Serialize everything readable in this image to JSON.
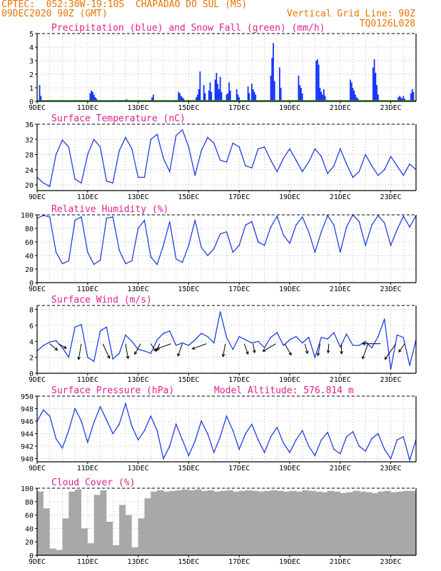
{
  "header": {
    "line1": "CPTEC:  052:30W-19:10S  CHAPADAO DO SUL (MS)",
    "line2": "09DEC2020 90Z (GMT)",
    "grid_note": "Vertical Grid Line: 90Z",
    "code": "TQ0126L028"
  },
  "colors": {
    "header": "#e87400",
    "title": "#e0208a",
    "precip": "#1030ff",
    "snow": "#20a020",
    "line": "#2040e0",
    "cloud": "#a8a8a8",
    "arrows": "#000000"
  },
  "chart_data": [
    {
      "id": "precip",
      "type": "bar",
      "title": "Precipitation (blue) and Snow Fall (green) (mm/h)",
      "ylim": [
        0,
        5
      ],
      "yticks": [
        0,
        1,
        2,
        3,
        4,
        5
      ],
      "xticks": [
        "9DEC",
        "11DEC",
        "13DEC",
        "15DEC",
        "17DEC",
        "19DEC",
        "21DEC",
        "23DEC"
      ],
      "series": [
        {
          "name": "precipitation",
          "x": [
            0.1,
            0.15,
            2.1,
            2.15,
            2.2,
            2.25,
            2.3,
            2.35,
            3.5,
            3.55,
            4.55,
            4.6,
            5.6,
            5.65,
            5.7,
            5.75,
            5.8,
            6.3,
            6.35,
            6.4,
            6.45,
            6.6,
            6.65,
            6.8,
            6.85,
            6.9,
            7.05,
            7.1,
            7.15,
            7.2,
            7.25,
            7.3,
            7.5,
            7.55,
            7.6,
            7.65,
            7.9,
            7.95,
            8.0,
            8.35,
            8.4,
            8.5,
            8.55,
            8.6,
            8.65,
            9.25,
            9.3,
            9.35,
            9.4,
            9.6,
            9.65,
            10.35,
            10.4,
            10.45,
            10.5,
            11.05,
            11.1,
            11.15,
            11.2,
            11.25,
            11.3,
            11.35,
            11.4,
            12.4,
            12.45,
            12.5,
            12.55,
            12.6,
            12.65,
            12.7,
            13.3,
            13.35,
            13.4,
            13.45,
            13.5,
            14.3,
            14.35,
            14.4,
            14.45,
            14.5,
            14.55,
            14.8,
            14.85,
            14.9
          ],
          "values": [
            1.2,
            0.4,
            0.6,
            0.8,
            0.7,
            0.5,
            0.3,
            0.2,
            0.1,
            0.15,
            0.3,
            0.5,
            0.7,
            0.6,
            0.4,
            0.3,
            0.2,
            0.3,
            0.5,
            0.9,
            2.2,
            1.2,
            0.6,
            0.8,
            1.4,
            0.7,
            1.6,
            2.1,
            1.3,
            0.9,
            1.8,
            0.7,
            0.5,
            0.6,
            1.4,
            0.8,
            0.9,
            0.5,
            0.3,
            1.1,
            0.6,
            1.3,
            0.9,
            0.7,
            0.5,
            1.9,
            3.2,
            4.3,
            1.5,
            2.5,
            1.0,
            1.9,
            1.2,
            1.0,
            0.6,
            3.0,
            3.1,
            2.7,
            1.0,
            0.7,
            0.5,
            0.9,
            0.4,
            1.6,
            1.4,
            1.0,
            0.8,
            0.5,
            0.3,
            0.2,
            2.5,
            3.1,
            2.1,
            1.2,
            0.5,
            0.3,
            0.4,
            0.3,
            0.2,
            0.4,
            0.2,
            0.6,
            0.9,
            0.7
          ]
        }
      ]
    },
    {
      "id": "temp",
      "type": "line",
      "title": "Surface Temperature (nC)",
      "ylim": [
        18.5,
        36
      ],
      "yticks": [
        20,
        24,
        28,
        32,
        36
      ],
      "xticks": [
        "9DEC",
        "11DEC",
        "13DEC",
        "15DEC",
        "17DEC",
        "19DEC",
        "21DEC",
        "23DEC"
      ],
      "series": [
        {
          "name": "temperature",
          "x": [
            0,
            0.25,
            0.5,
            0.75,
            1,
            1.25,
            1.5,
            1.75,
            2,
            2.25,
            2.5,
            2.75,
            3,
            3.25,
            3.5,
            3.75,
            4,
            4.25,
            4.5,
            4.75,
            5,
            5.25,
            5.5,
            5.75,
            6,
            6.25,
            6.5,
            6.75,
            7,
            7.25,
            7.5,
            7.75,
            8,
            8.25,
            8.5,
            8.75,
            9,
            9.25,
            9.5,
            9.75,
            10,
            10.25,
            10.5,
            10.75,
            11,
            11.25,
            11.5,
            11.75,
            12,
            12.25,
            12.5,
            12.75,
            13,
            13.25,
            13.5,
            13.75,
            14,
            14.25,
            14.5,
            14.75,
            15
          ],
          "values": [
            22,
            20.5,
            19.6,
            28,
            31.8,
            30,
            21.5,
            20.5,
            28,
            32,
            30,
            21,
            20.5,
            29,
            32.5,
            29.5,
            22,
            22,
            32,
            33.3,
            27,
            23.5,
            33,
            34.5,
            30,
            22.5,
            29,
            32.5,
            31,
            26.5,
            26,
            31,
            30,
            25,
            24.5,
            29.5,
            30,
            26.5,
            23.5,
            27,
            29.5,
            26.5,
            23.5,
            26,
            29.5,
            27.5,
            23,
            25,
            29.5,
            25.5,
            22,
            23.5,
            28,
            25,
            22.5,
            24,
            27.5,
            25,
            22.5,
            25.5,
            24
          ]
        }
      ]
    },
    {
      "id": "rh",
      "type": "line",
      "title": "Relative Humidity (%)",
      "ylim": [
        0,
        100
      ],
      "yticks": [
        0,
        20,
        40,
        60,
        80,
        100
      ],
      "xticks": [
        "9DEC",
        "11DEC",
        "13DEC",
        "15DEC",
        "17DEC",
        "19DEC",
        "21DEC",
        "23DEC"
      ],
      "series": [
        {
          "name": "relative humidity",
          "x": [
            0,
            0.25,
            0.5,
            0.75,
            1,
            1.25,
            1.5,
            1.75,
            2,
            2.25,
            2.5,
            2.75,
            3,
            3.25,
            3.5,
            3.75,
            4,
            4.25,
            4.5,
            4.75,
            5,
            5.25,
            5.5,
            5.75,
            6,
            6.25,
            6.5,
            6.75,
            7,
            7.25,
            7.5,
            7.75,
            8,
            8.25,
            8.5,
            8.75,
            9,
            9.25,
            9.5,
            9.75,
            10,
            10.25,
            10.5,
            10.75,
            11,
            11.25,
            11.5,
            11.75,
            12,
            12.25,
            12.5,
            12.75,
            13,
            13.25,
            13.5,
            13.75,
            14,
            14.25,
            14.5,
            14.75,
            15
          ],
          "values": [
            95,
            99,
            97,
            45,
            28,
            32,
            92,
            97,
            45,
            27,
            33,
            95,
            97,
            48,
            28,
            32,
            80,
            92,
            38,
            27,
            55,
            90,
            35,
            30,
            55,
            92,
            52,
            40,
            50,
            72,
            75,
            45,
            55,
            85,
            90,
            60,
            55,
            82,
            98,
            70,
            58,
            85,
            97,
            75,
            45,
            75,
            99,
            85,
            45,
            82,
            100,
            90,
            55,
            85,
            99,
            88,
            55,
            78,
            98,
            82,
            99
          ]
        }
      ]
    },
    {
      "id": "wind",
      "type": "line",
      "title": "Surface Wind (m/s)",
      "ylim": [
        0,
        8.5
      ],
      "yticks": [
        0,
        2,
        4,
        6,
        8
      ],
      "xticks": [
        "9DEC",
        "11DEC",
        "13DEC",
        "15DEC",
        "17DEC",
        "19DEC",
        "21DEC",
        "23DEC"
      ],
      "series": [
        {
          "name": "wind speed",
          "x": [
            0,
            0.25,
            0.5,
            0.75,
            1,
            1.25,
            1.5,
            1.75,
            2,
            2.25,
            2.5,
            2.75,
            3,
            3.25,
            3.5,
            3.75,
            4,
            4.25,
            4.5,
            4.75,
            5,
            5.25,
            5.5,
            5.75,
            6,
            6.25,
            6.5,
            6.75,
            7,
            7.25,
            7.5,
            7.75,
            8,
            8.25,
            8.5,
            8.75,
            9,
            9.25,
            9.5,
            9.75,
            10,
            10.25,
            10.5,
            10.75,
            11,
            11.25,
            11.5,
            11.75,
            12,
            12.25,
            12.5,
            12.75,
            13,
            13.25,
            13.5,
            13.75,
            14,
            14.25,
            14.5,
            14.75,
            15
          ],
          "values": [
            2.8,
            3.5,
            3.9,
            4.1,
            3.2,
            2.0,
            5.8,
            6.1,
            2.0,
            1.5,
            5.3,
            5.8,
            1.8,
            2.5,
            4.8,
            4.0,
            3.0,
            2.8,
            2.5,
            4.2,
            5.0,
            5.3,
            3.5,
            3.8,
            3.5,
            4.2,
            5.0,
            4.6,
            3.8,
            7.7,
            4.5,
            3.0,
            4.6,
            4.2,
            3.8,
            4.0,
            3.2,
            4.5,
            5.1,
            3.5,
            4.2,
            4.6,
            3.8,
            4.5,
            2.0,
            4.5,
            4.3,
            5.1,
            3.3,
            4.9,
            3.5,
            3.5,
            4.0,
            3.2,
            4.6,
            6.8,
            0.5,
            4.8,
            4.5,
            1.0,
            4.2
          ]
        }
      ],
      "arrows": {
        "x": [
          0.5,
          0.85,
          1.75,
          2.6,
          3.5,
          4.1,
          4.5,
          4.85,
          5.3,
          5.75,
          6.7,
          7.45,
          8.2,
          8.55,
          9.45,
          9.8,
          10.6,
          11.2,
          11.55,
          12.05,
          13.1,
          13.6,
          14.2,
          14.55
        ],
        "length": [
          1.0,
          0.9,
          1.6,
          1.6,
          1.5,
          1.2,
          0.9,
          0.8,
          1.5,
          1.3,
          1.5,
          1.3,
          1.1,
          0.9,
          1.5,
          1.3,
          1.0,
          1.2,
          0.9,
          1.0,
          1.6,
          1.8,
          1.9,
          1.0
        ],
        "angle_deg": [
          -40,
          -30,
          -100,
          -65,
          -80,
          -120,
          -55,
          -115,
          -160,
          -110,
          -160,
          -100,
          -70,
          -80,
          -150,
          -60,
          -75,
          -100,
          -95,
          -90,
          -110,
          -180,
          -125,
          -125
        ]
      }
    },
    {
      "id": "pressure",
      "type": "line",
      "title": "Surface Pressure (hPa)",
      "subtitle": "Model Altitude: 576.814 m",
      "ylim": [
        939.5,
        950
      ],
      "yticks": [
        940,
        942,
        944,
        946,
        948,
        950
      ],
      "xticks": [
        "9DEC",
        "11DEC",
        "13DEC",
        "15DEC",
        "17DEC",
        "19DEC",
        "21DEC",
        "23DEC"
      ],
      "series": [
        {
          "name": "surface pressure",
          "x": [
            0,
            0.25,
            0.5,
            0.75,
            1,
            1.25,
            1.5,
            1.75,
            2,
            2.25,
            2.5,
            2.75,
            3,
            3.25,
            3.5,
            3.75,
            4,
            4.25,
            4.5,
            4.75,
            5,
            5.25,
            5.5,
            5.75,
            6,
            6.25,
            6.5,
            6.75,
            7,
            7.25,
            7.5,
            7.75,
            8,
            8.25,
            8.5,
            8.75,
            9,
            9.25,
            9.5,
            9.75,
            10,
            10.25,
            10.5,
            10.75,
            11,
            11.25,
            11.5,
            11.75,
            12,
            12.25,
            12.5,
            12.75,
            13,
            13.25,
            13.5,
            13.75,
            14,
            14.25,
            14.5,
            14.75,
            15
          ],
          "values": [
            946.0,
            947.8,
            946.8,
            943.2,
            941.7,
            944.5,
            948.0,
            946.0,
            942.6,
            945.8,
            948.3,
            946.2,
            944.0,
            945.5,
            948.8,
            945.2,
            943.0,
            944.5,
            946.8,
            944.5,
            940.0,
            942.0,
            945.5,
            943.0,
            940.5,
            942.8,
            946.0,
            944.0,
            941.0,
            943.5,
            946.8,
            944.5,
            941.5,
            944.0,
            945.5,
            943.0,
            941.0,
            943.5,
            945.0,
            942.5,
            941.0,
            943.0,
            944.5,
            942.0,
            940.5,
            943.0,
            944.2,
            941.5,
            940.8,
            943.5,
            944.3,
            942.0,
            941.2,
            943.2,
            944.0,
            941.5,
            940.0,
            943.0,
            943.5,
            939.8,
            943.0
          ]
        }
      ]
    },
    {
      "id": "cloud",
      "type": "bar",
      "title": "Cloud Cover (%)",
      "ylim": [
        0,
        100
      ],
      "yticks": [
        0,
        20,
        40,
        60,
        80,
        100
      ],
      "xticks": [
        "9DEC",
        "11DEC",
        "13DEC",
        "15DEC",
        "17DEC",
        "19DEC",
        "21DEC",
        "23DEC"
      ],
      "series": [
        {
          "name": "cloud cover",
          "x": [
            0.25,
            0.5,
            0.75,
            1,
            1.25,
            1.5,
            1.75,
            2,
            2.25,
            2.5,
            2.75,
            3,
            3.25,
            3.5,
            3.75,
            4,
            4.25,
            4.5,
            4.75,
            5,
            5.25,
            5.5,
            5.75,
            6,
            6.25,
            6.5,
            6.75,
            7,
            7.25,
            7.5,
            7.75,
            8,
            8.25,
            8.5,
            8.75,
            9,
            9.25,
            9.5,
            9.75,
            10,
            10.25,
            10.5,
            10.75,
            11,
            11.25,
            11.5,
            11.75,
            12,
            12.25,
            12.5,
            12.75,
            13,
            13.25,
            13.5,
            13.75,
            14,
            14.25,
            14.5,
            14.75
          ],
          "values": [
            95,
            70,
            10,
            8,
            55,
            95,
            98,
            40,
            18,
            90,
            97,
            50,
            15,
            75,
            60,
            12,
            55,
            85,
            95,
            97,
            95,
            96,
            97,
            98,
            97,
            98,
            96,
            97,
            95,
            96,
            97,
            95,
            96,
            97,
            96,
            95,
            96,
            97,
            96,
            95,
            96,
            95,
            97,
            96,
            95,
            94,
            96,
            95,
            93,
            94,
            96,
            95,
            94,
            93,
            95,
            96,
            94,
            95,
            96
          ]
        }
      ]
    }
  ]
}
